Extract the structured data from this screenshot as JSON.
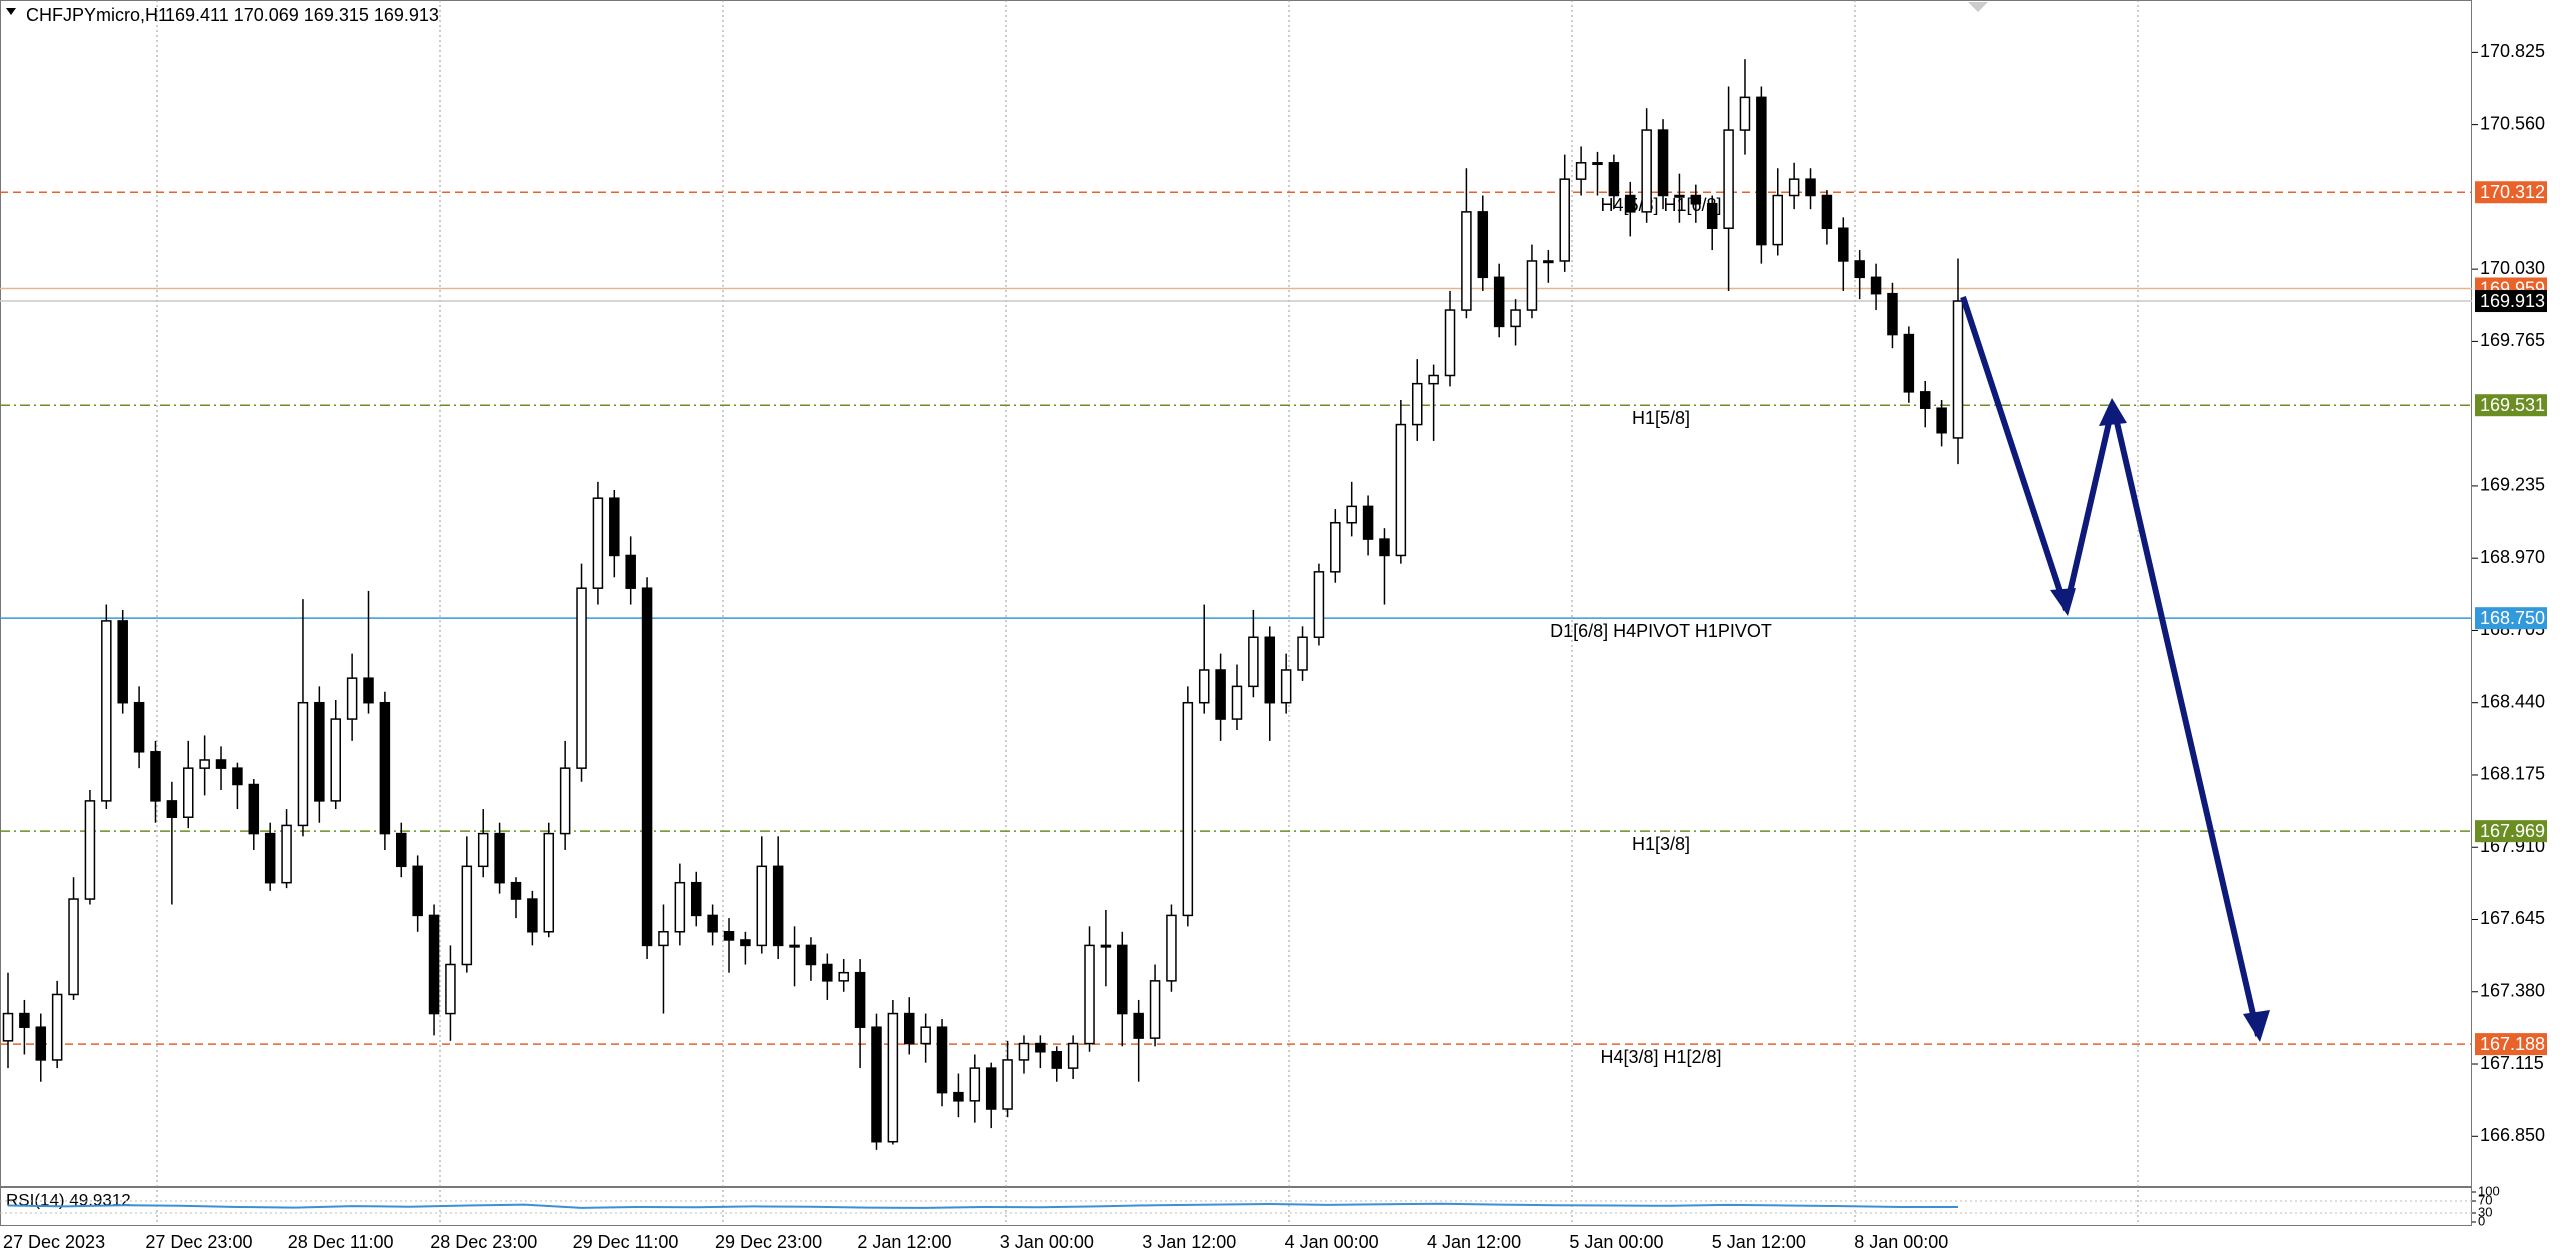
{
  "chart_data": {
    "type": "candlestick",
    "symbol": "CHFJPYmicro,H1",
    "ohlc_text": "169.411 170.069 169.315 169.913",
    "ylim": [
      166.664,
      171.017
    ],
    "yticks": [
      170.825,
      {
        "value": 170.56,
        "label": "170.560"
      },
      {
        "value": 170.03,
        "label": "170.030"
      },
      169.765,
      169.235,
      {
        "value": 168.97,
        "label": "168.970"
      },
      168.705,
      {
        "value": 168.44,
        "label": "168.440"
      },
      168.175,
      {
        "value": 167.91,
        "label": "167.910"
      },
      167.645,
      {
        "value": 167.38,
        "label": "167.380"
      },
      167.115,
      {
        "value": 166.85,
        "label": "166.850"
      }
    ],
    "x_labels": [
      "27 Dec 2023",
      "27 Dec 23:00",
      "28 Dec 11:00",
      "28 Dec 23:00",
      "29 Dec 11:00",
      "29 Dec 23:00",
      "2 Jan 12:00",
      "3 Jan 00:00",
      "3 Jan 12:00",
      "4 Jan 00:00",
      "4 Jan 12:00",
      "5 Jan 00:00",
      "5 Jan 12:00",
      "8 Jan 00:00"
    ],
    "levels": [
      {
        "value": 170.312,
        "tag": "170.312",
        "name": "H4[5/8] H1[6/8]",
        "color": "#e8622a",
        "dash": "8,5"
      },
      {
        "value": 169.959,
        "tag": "169.959",
        "color": "#e8622a",
        "line": "#e8b48a",
        "dash": "none"
      },
      {
        "value": 169.913,
        "tag": "169.913",
        "color": "#000000",
        "line": "#c8c8c8",
        "dash": "none"
      },
      {
        "value": 169.531,
        "tag": "169.531",
        "name": "H1[5/8]",
        "color": "#6b8e23",
        "dash": "10,4,2,4"
      },
      {
        "value": 168.75,
        "tag": "168.750",
        "name": "D1[6/8] H4PIVOT H1PIVOT",
        "color": "#3399dd",
        "dash": "none"
      },
      {
        "value": 167.969,
        "tag": "167.969",
        "name": "H1[3/8]",
        "color": "#6b8e23",
        "dash": "10,4,2,4"
      },
      {
        "value": 167.188,
        "tag": "167.188",
        "name": "H4[3/8] H1[2/8]",
        "color": "#e8622a",
        "dash": "8,5"
      }
    ],
    "candles": [
      [
        167.2,
        167.45,
        167.1,
        167.3
      ],
      [
        167.3,
        167.35,
        167.15,
        167.25
      ],
      [
        167.25,
        167.3,
        167.05,
        167.13
      ],
      [
        167.13,
        167.42,
        167.1,
        167.37
      ],
      [
        167.37,
        167.8,
        167.35,
        167.72
      ],
      [
        167.72,
        168.12,
        167.7,
        168.08
      ],
      [
        168.08,
        168.8,
        168.05,
        168.74
      ],
      [
        168.74,
        168.78,
        168.4,
        168.44
      ],
      [
        168.44,
        168.5,
        168.2,
        168.26
      ],
      [
        168.26,
        168.3,
        168.0,
        168.08
      ],
      [
        168.08,
        168.15,
        167.7,
        168.02
      ],
      [
        168.02,
        168.3,
        167.98,
        168.2
      ],
      [
        168.2,
        168.32,
        168.1,
        168.23
      ],
      [
        168.23,
        168.28,
        168.12,
        168.2
      ],
      [
        168.2,
        168.22,
        168.05,
        168.14
      ],
      [
        168.14,
        168.16,
        167.9,
        167.96
      ],
      [
        167.96,
        168.0,
        167.75,
        167.78
      ],
      [
        167.78,
        168.05,
        167.76,
        167.99
      ],
      [
        167.99,
        168.82,
        167.95,
        168.44
      ],
      [
        168.44,
        168.5,
        168.0,
        168.08
      ],
      [
        168.08,
        168.45,
        168.05,
        168.38
      ],
      [
        168.38,
        168.62,
        168.3,
        168.53
      ],
      [
        168.53,
        168.85,
        168.4,
        168.44
      ],
      [
        168.44,
        168.48,
        167.9,
        167.96
      ],
      [
        167.96,
        168.0,
        167.8,
        167.84
      ],
      [
        167.84,
        167.88,
        167.6,
        167.66
      ],
      [
        167.66,
        167.7,
        167.22,
        167.3
      ],
      [
        167.3,
        167.55,
        167.2,
        167.48
      ],
      [
        167.48,
        167.95,
        167.45,
        167.84
      ],
      [
        167.84,
        168.05,
        167.8,
        167.96
      ],
      [
        167.96,
        168.0,
        167.74,
        167.78
      ],
      [
        167.78,
        167.8,
        167.65,
        167.72
      ],
      [
        167.72,
        167.75,
        167.55,
        167.6
      ],
      [
        167.6,
        168.0,
        167.58,
        167.96
      ],
      [
        167.96,
        168.3,
        167.9,
        168.2
      ],
      [
        168.2,
        168.95,
        168.15,
        168.86
      ],
      [
        168.86,
        169.25,
        168.8,
        169.19
      ],
      [
        169.19,
        169.22,
        168.9,
        168.98
      ],
      [
        168.98,
        169.05,
        168.8,
        168.86
      ],
      [
        168.86,
        168.9,
        167.5,
        167.55
      ],
      [
        167.55,
        167.7,
        167.3,
        167.6
      ],
      [
        167.6,
        167.85,
        167.55,
        167.78
      ],
      [
        167.78,
        167.82,
        167.62,
        167.66
      ],
      [
        167.66,
        167.7,
        167.55,
        167.6
      ],
      [
        167.6,
        167.65,
        167.45,
        167.57
      ],
      [
        167.57,
        167.6,
        167.48,
        167.55
      ],
      [
        167.55,
        167.95,
        167.52,
        167.84
      ],
      [
        167.84,
        167.95,
        167.5,
        167.55
      ],
      [
        167.55,
        167.62,
        167.4,
        167.55
      ],
      [
        167.55,
        167.58,
        167.42,
        167.48
      ],
      [
        167.48,
        167.52,
        167.35,
        167.42
      ],
      [
        167.42,
        167.5,
        167.38,
        167.45
      ],
      [
        167.45,
        167.5,
        167.1,
        167.25
      ],
      [
        167.25,
        167.3,
        166.8,
        166.83
      ],
      [
        166.83,
        167.35,
        166.82,
        167.3
      ],
      [
        167.3,
        167.36,
        167.15,
        167.19
      ],
      [
        167.19,
        167.3,
        167.12,
        167.25
      ],
      [
        167.25,
        167.28,
        166.96,
        167.01
      ],
      [
        167.01,
        167.08,
        166.92,
        166.98
      ],
      [
        166.98,
        167.15,
        166.9,
        167.1
      ],
      [
        167.1,
        167.12,
        166.88,
        166.95
      ],
      [
        166.95,
        167.2,
        166.92,
        167.13
      ],
      [
        167.13,
        167.22,
        167.08,
        167.19
      ],
      [
        167.19,
        167.22,
        167.1,
        167.16
      ],
      [
        167.16,
        167.18,
        167.05,
        167.1
      ],
      [
        167.1,
        167.22,
        167.06,
        167.19
      ],
      [
        167.19,
        167.62,
        167.16,
        167.55
      ],
      [
        167.55,
        167.68,
        167.4,
        167.55
      ],
      [
        167.55,
        167.6,
        167.18,
        167.3
      ],
      [
        167.3,
        167.35,
        167.05,
        167.21
      ],
      [
        167.21,
        167.48,
        167.18,
        167.42
      ],
      [
        167.42,
        167.7,
        167.38,
        167.66
      ],
      [
        167.66,
        168.5,
        167.62,
        168.44
      ],
      [
        168.44,
        168.8,
        168.4,
        168.56
      ],
      [
        168.56,
        168.62,
        168.3,
        168.38
      ],
      [
        168.38,
        168.58,
        168.34,
        168.5
      ],
      [
        168.5,
        168.78,
        168.46,
        168.68
      ],
      [
        168.68,
        168.72,
        168.3,
        168.44
      ],
      [
        168.44,
        168.62,
        168.4,
        168.56
      ],
      [
        168.56,
        168.72,
        168.52,
        168.68
      ],
      [
        168.68,
        168.95,
        168.65,
        168.92
      ],
      [
        168.92,
        169.15,
        168.88,
        169.1
      ],
      [
        169.1,
        169.25,
        169.05,
        169.16
      ],
      [
        169.16,
        169.2,
        168.98,
        169.04
      ],
      [
        169.04,
        169.08,
        168.8,
        168.98
      ],
      [
        168.98,
        169.55,
        168.95,
        169.46
      ],
      [
        169.46,
        169.7,
        169.4,
        169.61
      ],
      [
        169.61,
        169.68,
        169.4,
        169.64
      ],
      [
        169.64,
        169.95,
        169.6,
        169.88
      ],
      [
        169.88,
        170.4,
        169.85,
        170.24
      ],
      [
        170.24,
        170.3,
        169.95,
        170.0
      ],
      [
        170.0,
        170.05,
        169.78,
        169.82
      ],
      [
        169.82,
        169.92,
        169.75,
        169.88
      ],
      [
        169.88,
        170.12,
        169.85,
        170.06
      ],
      [
        170.06,
        170.1,
        169.98,
        170.06
      ],
      [
        170.06,
        170.45,
        170.02,
        170.36
      ],
      [
        170.36,
        170.48,
        170.3,
        170.42
      ],
      [
        170.42,
        170.46,
        170.3,
        170.42
      ],
      [
        170.42,
        170.45,
        170.25,
        170.3
      ],
      [
        170.3,
        170.35,
        170.15,
        170.24
      ],
      [
        170.24,
        170.62,
        170.2,
        170.54
      ],
      [
        170.54,
        170.58,
        170.25,
        170.3
      ],
      [
        170.3,
        170.38,
        170.2,
        170.3
      ],
      [
        170.3,
        170.34,
        170.2,
        170.27
      ],
      [
        170.27,
        170.3,
        170.1,
        170.18
      ],
      [
        170.18,
        170.7,
        169.95,
        170.54
      ],
      [
        170.54,
        170.8,
        170.45,
        170.66
      ],
      [
        170.66,
        170.7,
        170.05,
        170.12
      ],
      [
        170.12,
        170.4,
        170.08,
        170.3
      ],
      [
        170.3,
        170.42,
        170.25,
        170.36
      ],
      [
        170.36,
        170.4,
        170.25,
        170.3
      ],
      [
        170.3,
        170.32,
        170.12,
        170.18
      ],
      [
        170.18,
        170.22,
        169.95,
        170.06
      ],
      [
        170.06,
        170.1,
        169.92,
        170.0
      ],
      [
        170.0,
        170.05,
        169.88,
        169.94
      ],
      [
        169.94,
        169.98,
        169.74,
        169.79
      ],
      [
        169.79,
        169.82,
        169.54,
        169.58
      ],
      [
        169.58,
        169.62,
        169.45,
        169.52
      ],
      [
        169.52,
        169.55,
        169.38,
        169.43
      ],
      [
        169.411,
        170.069,
        169.315,
        169.913
      ]
    ],
    "rsi": {
      "label": "RSI(14) 49.9312",
      "color": "#3a8fd9",
      "ylim": [
        0,
        100
      ],
      "yticks": [
        100,
        70,
        30,
        0
      ],
      "values": [
        55,
        52,
        56,
        54,
        50,
        48,
        53,
        51,
        55,
        58,
        47,
        50,
        49,
        52,
        51,
        48,
        47,
        50,
        49,
        52,
        56,
        58,
        60,
        57,
        59,
        61,
        58,
        56,
        55,
        54,
        57,
        55,
        53,
        50,
        49.9312
      ]
    }
  }
}
